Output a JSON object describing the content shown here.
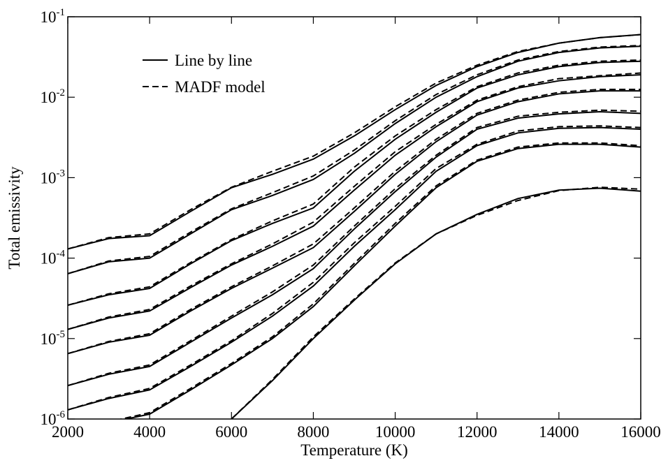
{
  "chart_data": {
    "type": "line",
    "xlabel": "Temperature (K)",
    "ylabel": "Total emissivity",
    "log_y": true,
    "x": [
      2000,
      3000,
      4000,
      5000,
      6000,
      7000,
      8000,
      9000,
      10000,
      11000,
      12000,
      13000,
      14000,
      15000,
      16000
    ],
    "xlim": [
      2000,
      16000
    ],
    "xticks": [
      2000,
      4000,
      6000,
      8000,
      10000,
      12000,
      14000,
      16000
    ],
    "ylim": [
      1e-06,
      0.1
    ],
    "yticks": [
      {
        "value": 1e-06,
        "label": "10",
        "exponent": "-6"
      },
      {
        "value": 1e-05,
        "label": "10",
        "exponent": "-5"
      },
      {
        "value": 0.0001,
        "label": "10",
        "exponent": "-4"
      },
      {
        "value": 0.001,
        "label": "10",
        "exponent": "-3"
      },
      {
        "value": 0.01,
        "label": "10",
        "exponent": "-2"
      },
      {
        "value": 0.1,
        "label": "10",
        "exponent": "-1"
      }
    ],
    "legend": "upper left",
    "series": [
      {
        "name": "Line by line",
        "color": "#000000",
        "dashed": false,
        "curves": [
          [
            0.00013,
            0.000175,
            0.00019,
            0.00038,
            0.00075,
            0.0011,
            0.0017,
            0.0033,
            0.007,
            0.014,
            0.024,
            0.036,
            0.047,
            0.055,
            0.06
          ],
          [
            6.4e-05,
            9e-05,
            0.0001,
            0.0002,
            0.0004,
            0.0006,
            0.00095,
            0.002,
            0.0047,
            0.01,
            0.018,
            0.028,
            0.036,
            0.041,
            0.043
          ],
          [
            2.6e-05,
            3.5e-05,
            4.2e-05,
            8.5e-05,
            0.000165,
            0.00027,
            0.00042,
            0.0012,
            0.003,
            0.0065,
            0.013,
            0.019,
            0.024,
            0.027,
            0.028
          ],
          [
            1.3e-05,
            1.8e-05,
            2.2e-05,
            4.3e-05,
            8.2e-05,
            0.00014,
            0.00025,
            0.0007,
            0.0019,
            0.0043,
            0.0088,
            0.013,
            0.016,
            0.018,
            0.019
          ],
          [
            6.5e-06,
            9e-06,
            1.1e-05,
            2.2e-05,
            4.2e-05,
            7.5e-05,
            0.000135,
            0.00038,
            0.0011,
            0.0028,
            0.006,
            0.0088,
            0.011,
            0.012,
            0.012
          ],
          [
            2.6e-06,
            3.6e-06,
            4.5e-06,
            9e-06,
            1.8e-05,
            3.5e-05,
            7.4e-05,
            0.00023,
            0.00067,
            0.0018,
            0.004,
            0.0055,
            0.0062,
            0.0066,
            0.0063
          ],
          [
            1.3e-06,
            1.8e-06,
            2.3e-06,
            4.5e-06,
            9e-06,
            1.9e-05,
            4.5e-05,
            0.00014,
            0.0004,
            0.0012,
            0.0025,
            0.0036,
            0.0041,
            0.0042,
            0.004
          ],
          [
            7e-07,
            9e-07,
            1.15e-06,
            2.3e-06,
            4.7e-06,
            1e-05,
            2.5e-05,
            8e-05,
            0.00025,
            0.00075,
            0.0016,
            0.0023,
            0.0026,
            0.0026,
            0.0024
          ],
          [
            null,
            null,
            null,
            null,
            1e-06,
            3e-06,
            1e-05,
            3e-05,
            8.5e-05,
            0.0002,
            0.00035,
            0.00055,
            0.0007,
            0.00074,
            0.00068
          ]
        ]
      },
      {
        "name": "MADF model",
        "color": "#000000",
        "dashed": true,
        "curves": [
          [
            0.00013,
            0.00018,
            0.0002,
            0.0004,
            0.00076,
            0.0012,
            0.00185,
            0.0036,
            0.0076,
            0.015,
            0.025,
            0.037,
            0.047,
            0.055,
            0.06
          ],
          [
            6.4e-05,
            9.2e-05,
            0.000105,
            0.00021,
            0.00041,
            0.00065,
            0.00105,
            0.0022,
            0.0051,
            0.0108,
            0.019,
            0.029,
            0.037,
            0.042,
            0.044
          ],
          [
            2.6e-05,
            3.6e-05,
            4.4e-05,
            8.8e-05,
            0.00017,
            0.00029,
            0.00047,
            0.00135,
            0.0033,
            0.007,
            0.0135,
            0.02,
            0.025,
            0.028,
            0.029
          ],
          [
            1.3e-05,
            1.85e-05,
            2.3e-05,
            4.5e-05,
            8.5e-05,
            0.00015,
            0.00028,
            0.00078,
            0.0021,
            0.0046,
            0.0092,
            0.0135,
            0.017,
            0.0185,
            0.02
          ],
          [
            6.5e-06,
            9.2e-06,
            1.15e-05,
            2.3e-05,
            4.4e-05,
            8e-05,
            0.00015,
            0.00042,
            0.0012,
            0.003,
            0.0063,
            0.0092,
            0.0115,
            0.0125,
            0.0125
          ],
          [
            2.6e-06,
            3.7e-06,
            4.7e-06,
            9.4e-06,
            1.9e-05,
            3.8e-05,
            8.2e-05,
            0.00025,
            0.00073,
            0.0019,
            0.0042,
            0.0058,
            0.0065,
            0.0069,
            0.0067
          ],
          [
            1.3e-06,
            1.85e-06,
            2.4e-06,
            4.7e-06,
            9.4e-06,
            2.05e-05,
            5e-05,
            0.000155,
            0.00044,
            0.0013,
            0.0026,
            0.0038,
            0.0043,
            0.0044,
            0.0042
          ],
          [
            7e-07,
            9.2e-07,
            1.2e-06,
            2.4e-06,
            4.9e-06,
            1.05e-05,
            2.7e-05,
            8.6e-05,
            0.00027,
            0.00079,
            0.00165,
            0.0024,
            0.0027,
            0.0027,
            0.0025
          ],
          [
            null,
            null,
            null,
            null,
            1e-06,
            3.1e-06,
            1.05e-05,
            3.1e-05,
            8.7e-05,
            0.0002,
            0.00034,
            0.00052,
            0.00069,
            0.00076,
            0.00072
          ]
        ]
      }
    ]
  }
}
